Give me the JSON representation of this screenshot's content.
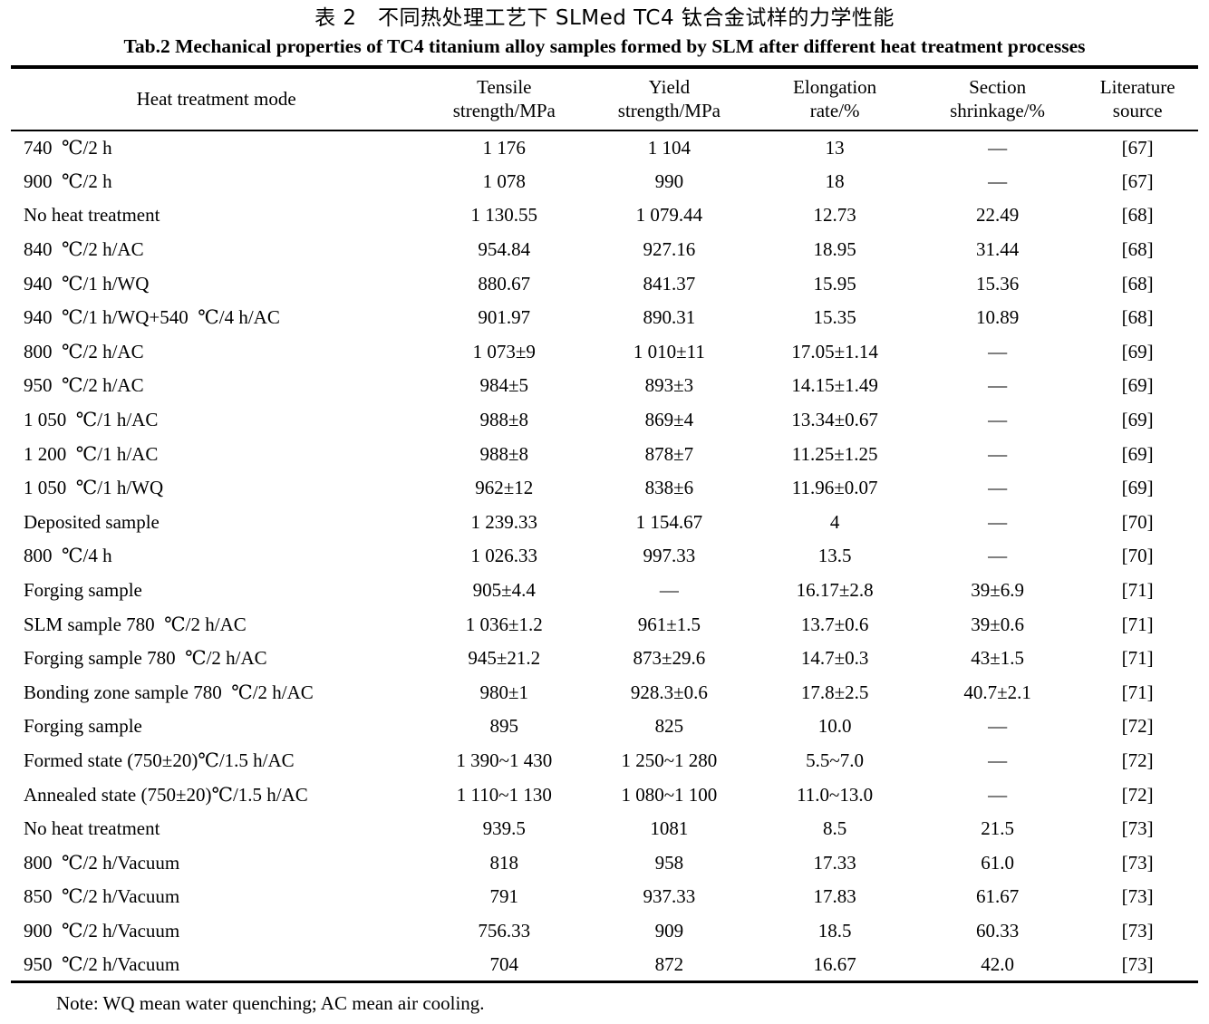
{
  "title_zh": "表 2　不同热处理工艺下 SLMed TC4 钛合金试样的力学性能",
  "title_en": "Tab.2 Mechanical properties of TC4 titanium alloy samples formed by SLM after different heat treatment processes",
  "table": {
    "columns": [
      {
        "key": "heat-treatment-mode",
        "label": "Heat treatment mode",
        "lines": [
          "Heat treatment mode"
        ]
      },
      {
        "key": "tensile-strength",
        "label": "Tensile strength/MPa",
        "lines": [
          "Tensile",
          "strength/MPa"
        ]
      },
      {
        "key": "yield-strength",
        "label": "Yield strength/MPa",
        "lines": [
          "Yield",
          "strength/MPa"
        ]
      },
      {
        "key": "elongation-rate",
        "label": "Elongation rate/%",
        "lines": [
          "Elongation",
          "rate/%"
        ]
      },
      {
        "key": "section-shrinkage",
        "label": "Section shrinkage/%",
        "lines": [
          "Section",
          "shrinkage/%"
        ]
      },
      {
        "key": "literature-source",
        "label": "Literature source",
        "lines": [
          "Literature",
          "source"
        ]
      }
    ],
    "rows": [
      [
        "740 ℃/2 h",
        "1 176",
        "1 104",
        "13",
        "—",
        "[67]"
      ],
      [
        "900 ℃/2 h",
        "1 078",
        "990",
        "18",
        "—",
        "[67]"
      ],
      [
        "No heat treatment",
        "1 130.55",
        "1 079.44",
        "12.73",
        "22.49",
        "[68]"
      ],
      [
        "840 ℃/2 h/AC",
        "954.84",
        "927.16",
        "18.95",
        "31.44",
        "[68]"
      ],
      [
        "940 ℃/1 h/WQ",
        "880.67",
        "841.37",
        "15.95",
        "15.36",
        "[68]"
      ],
      [
        "940 ℃/1 h/WQ+540 ℃/4 h/AC",
        "901.97",
        "890.31",
        "15.35",
        "10.89",
        "[68]"
      ],
      [
        "800 ℃/2 h/AC",
        "1 073±9",
        "1 010±11",
        "17.05±1.14",
        "—",
        "[69]"
      ],
      [
        "950 ℃/2 h/AC",
        "984±5",
        "893±3",
        "14.15±1.49",
        "—",
        "[69]"
      ],
      [
        "1 050 ℃/1 h/AC",
        "988±8",
        "869±4",
        "13.34±0.67",
        "—",
        "[69]"
      ],
      [
        "1 200 ℃/1 h/AC",
        "988±8",
        "878±7",
        "11.25±1.25",
        "—",
        "[69]"
      ],
      [
        "1 050 ℃/1 h/WQ",
        "962±12",
        "838±6",
        "11.96±0.07",
        "—",
        "[69]"
      ],
      [
        "Deposited sample",
        "1 239.33",
        "1 154.67",
        "4",
        "—",
        "[70]"
      ],
      [
        "800 ℃/4 h",
        "1 026.33",
        "997.33",
        "13.5",
        "—",
        "[70]"
      ],
      [
        "Forging sample",
        "905±4.4",
        "—",
        "16.17±2.8",
        "39±6.9",
        "[71]"
      ],
      [
        "SLM sample 780 ℃/2 h/AC",
        "1 036±1.2",
        "961±1.5",
        "13.7±0.6",
        "39±0.6",
        "[71]"
      ],
      [
        "Forging sample 780 ℃/2 h/AC",
        "945±21.2",
        "873±29.6",
        "14.7±0.3",
        "43±1.5",
        "[71]"
      ],
      [
        "Bonding zone sample 780 ℃/2 h/AC",
        "980±1",
        "928.3±0.6",
        "17.8±2.5",
        "40.7±2.1",
        "[71]"
      ],
      [
        "Forging sample",
        "895",
        "825",
        "10.0",
        "—",
        "[72]"
      ],
      [
        "Formed state (750±20)℃/1.5 h/AC",
        "1 390~1 430",
        "1 250~1 280",
        "5.5~7.0",
        "—",
        "[72]"
      ],
      [
        "Annealed state (750±20)℃/1.5 h/AC",
        "1 110~1 130",
        "1 080~1 100",
        "11.0~13.0",
        "—",
        "[72]"
      ],
      [
        "No heat treatment",
        "939.5",
        "1081",
        "8.5",
        "21.5",
        "[73]"
      ],
      [
        "800 ℃/2 h/Vacuum",
        "818",
        "958",
        "17.33",
        "61.0",
        "[73]"
      ],
      [
        "850 ℃/2 h/Vacuum",
        "791",
        "937.33",
        "17.83",
        "61.67",
        "[73]"
      ],
      [
        "900 ℃/2 h/Vacuum",
        "756.33",
        "909",
        "18.5",
        "60.33",
        "[73]"
      ],
      [
        "950 ℃/2 h/Vacuum",
        "704",
        "872",
        "16.67",
        "42.0",
        "[73]"
      ]
    ],
    "column_widths_pct": [
      34.6,
      13.9,
      13.9,
      14.0,
      13.4,
      10.2
    ]
  },
  "note": "Note: WQ mean water quenching; AC mean air cooling."
}
